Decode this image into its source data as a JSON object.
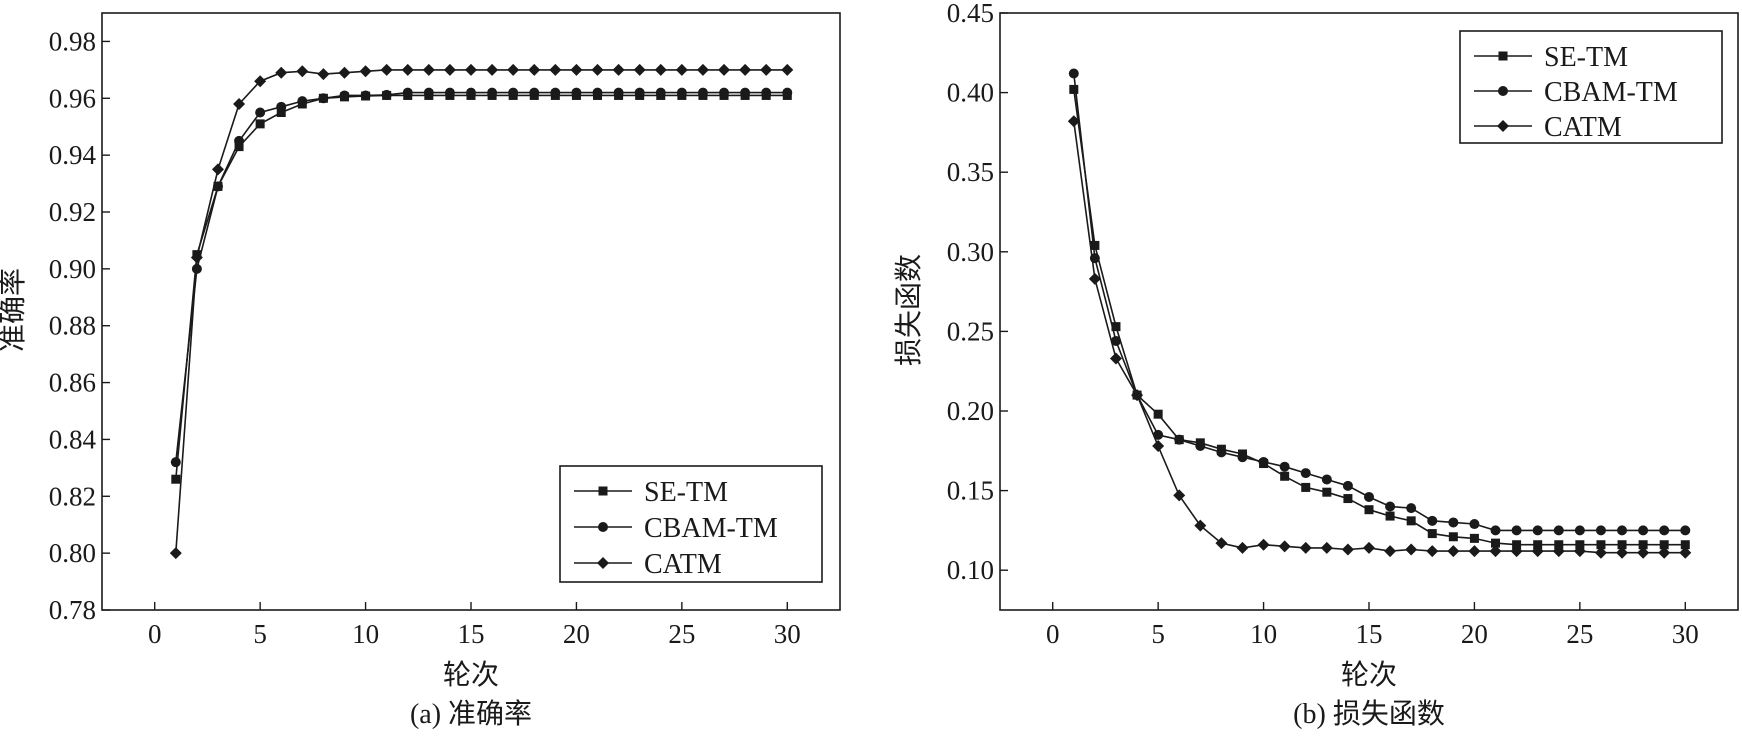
{
  "chart_data": [
    {
      "type": "line",
      "caption": "(a) 准确率",
      "xlabel": "轮次",
      "ylabel": "准确率",
      "xlim": [
        -2.5,
        32.5
      ],
      "ylim": [
        0.78,
        0.99
      ],
      "xticks": [
        0,
        5,
        10,
        15,
        20,
        25,
        30
      ],
      "yticks": [
        0.78,
        0.8,
        0.82,
        0.84,
        0.86,
        0.88,
        0.9,
        0.92,
        0.94,
        0.96,
        0.98
      ],
      "ytick_decimals": 2,
      "legend_position": "bottom-right",
      "x": [
        1,
        2,
        3,
        4,
        5,
        6,
        7,
        8,
        9,
        10,
        11,
        12,
        13,
        14,
        15,
        16,
        17,
        18,
        19,
        20,
        21,
        22,
        23,
        24,
        25,
        26,
        27,
        28,
        29,
        30
      ],
      "series": [
        {
          "name": "SE-TM",
          "marker": "square",
          "values": [
            0.826,
            0.905,
            0.929,
            0.943,
            0.951,
            0.955,
            0.958,
            0.96,
            0.9605,
            0.9608,
            0.961,
            0.961,
            0.961,
            0.961,
            0.961,
            0.961,
            0.961,
            0.961,
            0.961,
            0.961,
            0.961,
            0.961,
            0.961,
            0.961,
            0.961,
            0.961,
            0.961,
            0.961,
            0.961,
            0.961
          ]
        },
        {
          "name": "CBAM-TM",
          "marker": "circle",
          "values": [
            0.832,
            0.9,
            0.929,
            0.945,
            0.955,
            0.957,
            0.959,
            0.96,
            0.961,
            0.961,
            0.9612,
            0.962,
            0.962,
            0.962,
            0.962,
            0.962,
            0.962,
            0.962,
            0.962,
            0.962,
            0.962,
            0.962,
            0.962,
            0.962,
            0.962,
            0.962,
            0.962,
            0.962,
            0.962,
            0.962
          ]
        },
        {
          "name": "CATM",
          "marker": "diamond",
          "values": [
            0.8,
            0.904,
            0.935,
            0.958,
            0.966,
            0.969,
            0.9695,
            0.9685,
            0.969,
            0.9695,
            0.97,
            0.97,
            0.97,
            0.97,
            0.97,
            0.97,
            0.97,
            0.97,
            0.97,
            0.97,
            0.97,
            0.97,
            0.97,
            0.97,
            0.97,
            0.97,
            0.97,
            0.97,
            0.97,
            0.97
          ]
        }
      ]
    },
    {
      "type": "line",
      "caption": "(b) 损失函数",
      "xlabel": "轮次",
      "ylabel": "损失函数",
      "xlim": [
        -2.5,
        32.5
      ],
      "ylim": [
        0.075,
        0.45
      ],
      "xticks": [
        0,
        5,
        10,
        15,
        20,
        25,
        30
      ],
      "yticks": [
        0.1,
        0.15,
        0.2,
        0.25,
        0.3,
        0.35,
        0.4,
        0.45
      ],
      "ytick_decimals": 2,
      "legend_position": "top-right",
      "x": [
        1,
        2,
        3,
        4,
        5,
        6,
        7,
        8,
        9,
        10,
        11,
        12,
        13,
        14,
        15,
        16,
        17,
        18,
        19,
        20,
        21,
        22,
        23,
        24,
        25,
        26,
        27,
        28,
        29,
        30
      ],
      "series": [
        {
          "name": "SE-TM",
          "marker": "square",
          "values": [
            0.402,
            0.304,
            0.253,
            0.21,
            0.198,
            0.182,
            0.18,
            0.176,
            0.173,
            0.167,
            0.159,
            0.152,
            0.149,
            0.145,
            0.138,
            0.134,
            0.131,
            0.123,
            0.121,
            0.12,
            0.117,
            0.116,
            0.116,
            0.116,
            0.116,
            0.116,
            0.116,
            0.116,
            0.116,
            0.116
          ]
        },
        {
          "name": "CBAM-TM",
          "marker": "circle",
          "values": [
            0.412,
            0.296,
            0.244,
            0.21,
            0.185,
            0.182,
            0.178,
            0.174,
            0.171,
            0.168,
            0.165,
            0.161,
            0.157,
            0.153,
            0.146,
            0.14,
            0.139,
            0.131,
            0.13,
            0.129,
            0.125,
            0.125,
            0.125,
            0.125,
            0.125,
            0.125,
            0.125,
            0.125,
            0.125,
            0.125
          ]
        },
        {
          "name": "CATM",
          "marker": "diamond",
          "values": [
            0.382,
            0.283,
            0.233,
            0.21,
            0.178,
            0.147,
            0.128,
            0.117,
            0.114,
            0.116,
            0.115,
            0.114,
            0.114,
            0.113,
            0.114,
            0.112,
            0.113,
            0.112,
            0.112,
            0.112,
            0.112,
            0.112,
            0.112,
            0.112,
            0.112,
            0.111,
            0.111,
            0.111,
            0.111,
            0.111
          ]
        }
      ]
    }
  ]
}
